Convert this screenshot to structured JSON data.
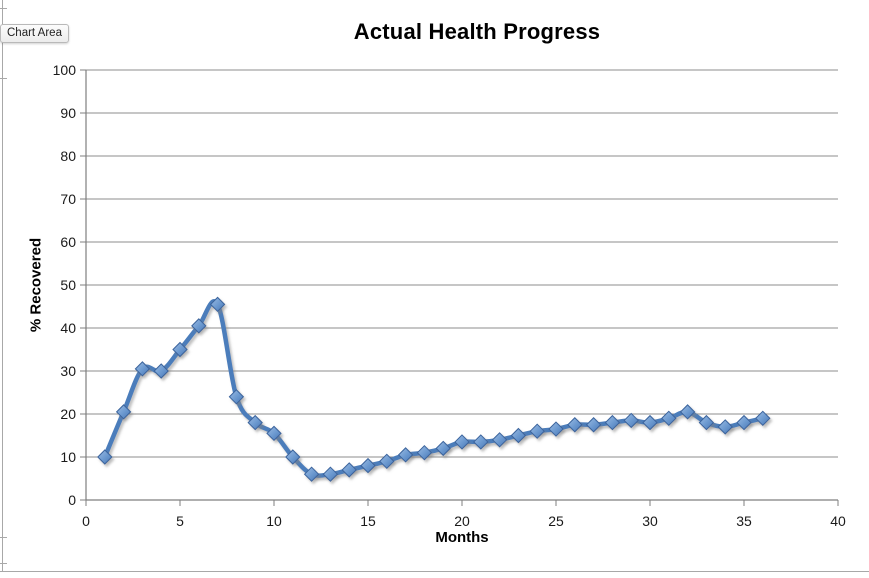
{
  "window": {
    "tooltip": "Chart Area"
  },
  "chart_data": {
    "type": "line",
    "title": "Actual Health Progress",
    "xlabel": "Months",
    "ylabel": "% Recovered",
    "xlim": [
      0,
      40
    ],
    "ylim": [
      0,
      100
    ],
    "x_ticks": [
      0,
      5,
      10,
      15,
      20,
      25,
      30,
      35,
      40
    ],
    "y_ticks": [
      0,
      10,
      20,
      30,
      40,
      50,
      60,
      70,
      80,
      90,
      100
    ],
    "grid": "horizontal",
    "legend": "none",
    "marker": "diamond",
    "smoothed": true,
    "series": [
      {
        "name": "Actual Health Progress",
        "x": [
          1,
          2,
          3,
          4,
          5,
          6,
          7,
          8,
          9,
          10,
          11,
          12,
          13,
          14,
          15,
          16,
          17,
          18,
          19,
          20,
          21,
          22,
          23,
          24,
          25,
          26,
          27,
          28,
          29,
          30,
          31,
          32,
          33,
          34,
          35,
          36
        ],
        "y": [
          10,
          20.5,
          30.5,
          30,
          35,
          40.5,
          45.5,
          24,
          18,
          15.5,
          10,
          6,
          6,
          7,
          8,
          9,
          10.5,
          11,
          12,
          13.5,
          13.5,
          14,
          15,
          16,
          16.5,
          17.5,
          17.5,
          18,
          18.5,
          18,
          19,
          20.5,
          18,
          17,
          18,
          19
        ]
      }
    ],
    "colors": {
      "line": "#4C7DBB",
      "marker_light": "#9DBCE2",
      "marker_mid": "#6E9BD1",
      "marker_dark": "#4876B5",
      "marker_border": "#3A639C",
      "grid": "#8C8C8C",
      "axis": "#7F7F7F",
      "text": "#1A1A1A"
    }
  }
}
